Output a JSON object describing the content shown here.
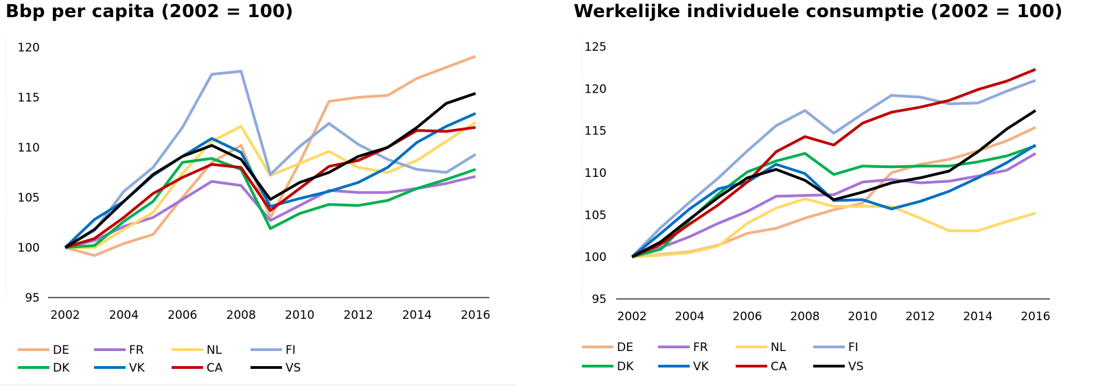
{
  "charts": [
    {
      "title": "Bbp per capita (2002 = 100)",
      "chart_data": {
        "type": "line",
        "title": "Bbp per capita (2002 = 100)",
        "xlabel": "",
        "ylabel": "",
        "x": [
          2002,
          2003,
          2004,
          2005,
          2006,
          2007,
          2008,
          2009,
          2010,
          2011,
          2012,
          2013,
          2014,
          2015,
          2016
        ],
        "xticks": [
          "2002",
          "2004",
          "2006",
          "2008",
          "2010",
          "2012",
          "2014",
          "2016"
        ],
        "yticks": [
          "95",
          "100",
          "105",
          "110",
          "115",
          "120"
        ],
        "ylim": [
          95,
          120
        ],
        "grid": false,
        "legend": "bottom",
        "series": [
          {
            "name": "DE",
            "color": "#F4B183",
            "values": [
              100,
              99.2,
              100.4,
              101.3,
              105.0,
              108.5,
              110.2,
              103.0,
              108.5,
              114.6,
              115.0,
              115.2,
              116.9,
              118.0,
              119.1
            ]
          },
          {
            "name": "FR",
            "color": "#A674D8",
            "values": [
              100,
              100.7,
              102.1,
              103.0,
              104.8,
              106.6,
              106.2,
              102.7,
              104.2,
              105.7,
              105.5,
              105.5,
              105.9,
              106.4,
              107.1
            ]
          },
          {
            "name": "NL",
            "color": "#FFD966",
            "values": [
              100,
              100.0,
              101.8,
              103.5,
              107.4,
              110.6,
              112.1,
              107.2,
              108.4,
              109.6,
              108.0,
              107.5,
              108.7,
              110.6,
              112.5
            ]
          },
          {
            "name": "FI",
            "color": "#8FAADC",
            "values": [
              100,
              101.7,
              105.6,
              108.0,
              112.0,
              117.3,
              117.6,
              107.3,
              110.1,
              112.4,
              110.3,
              108.8,
              107.8,
              107.5,
              109.3
            ]
          },
          {
            "name": "DK",
            "color": "#00B050",
            "values": [
              100,
              100.2,
              102.6,
              104.6,
              108.5,
              108.9,
              107.8,
              101.9,
              103.4,
              104.3,
              104.2,
              104.7,
              105.9,
              106.8,
              107.8
            ]
          },
          {
            "name": "VK",
            "color": "#0070C0",
            "values": [
              100,
              102.8,
              104.6,
              107.2,
              109.1,
              110.9,
              109.5,
              104.1,
              104.9,
              105.6,
              106.5,
              108.0,
              110.5,
              112.1,
              113.4
            ]
          },
          {
            "name": "CA",
            "color": "#C00000",
            "values": [
              100,
              100.9,
              103.0,
              105.4,
              107.0,
              108.3,
              108.0,
              103.7,
              105.9,
              108.1,
              108.7,
              110.0,
              111.7,
              111.6,
              112.0
            ]
          },
          {
            "name": "VS",
            "color": "#000000",
            "values": [
              100,
              101.8,
              104.6,
              107.3,
              109.1,
              110.2,
              108.8,
              104.8,
              106.5,
              107.5,
              109.1,
              110.0,
              112.0,
              114.4,
              115.4
            ]
          }
        ]
      }
    },
    {
      "title": "Werkelijke individuele consumptie (2002 = 100)",
      "chart_data": {
        "type": "line",
        "title": "Werkelijke individuele consumptie (2002 = 100)",
        "xlabel": "",
        "ylabel": "",
        "x": [
          2002,
          2003,
          2004,
          2005,
          2006,
          2007,
          2008,
          2009,
          2010,
          2011,
          2012,
          2013,
          2014,
          2015,
          2016
        ],
        "xticks": [
          "2002",
          "2004",
          "2006",
          "2008",
          "2010",
          "2012",
          "2014",
          "2016"
        ],
        "yticks": [
          "95",
          "100",
          "105",
          "110",
          "115",
          "120",
          "125"
        ],
        "ylim": [
          95,
          125
        ],
        "grid": false,
        "legend": "bottom",
        "series": [
          {
            "name": "DE",
            "color": "#F4B183",
            "values": [
              100,
              100.3,
              100.6,
              101.4,
              102.8,
              103.4,
              104.6,
              105.6,
              106.4,
              110.0,
              111.0,
              111.6,
              112.6,
              113.8,
              115.4
            ]
          },
          {
            "name": "FR",
            "color": "#A674D8",
            "values": [
              100,
              101.1,
              102.4,
              104.0,
              105.4,
              107.2,
              107.3,
              107.4,
              108.9,
              109.2,
              108.8,
              109.0,
              109.6,
              110.3,
              112.3
            ]
          },
          {
            "name": "NL",
            "color": "#FFD966",
            "values": [
              100,
              100.2,
              100.5,
              101.3,
              104.0,
              105.8,
              106.9,
              106.0,
              106.0,
              106.0,
              104.6,
              103.1,
              103.1,
              104.2,
              105.2
            ]
          },
          {
            "name": "FI",
            "color": "#8FAADC",
            "values": [
              100,
              103.5,
              106.5,
              109.4,
              112.6,
              115.6,
              117.4,
              114.7,
              117.0,
              119.2,
              119.0,
              118.2,
              118.3,
              119.7,
              121.0
            ]
          },
          {
            "name": "DK",
            "color": "#00B050",
            "values": [
              100,
              100.9,
              104.4,
              107.5,
              110.1,
              111.4,
              112.3,
              109.8,
              110.8,
              110.7,
              110.8,
              110.8,
              111.3,
              112.0,
              113.2
            ]
          },
          {
            "name": "VK",
            "color": "#0070C0",
            "values": [
              100,
              102.8,
              105.7,
              108.1,
              108.9,
              111.0,
              109.9,
              106.7,
              106.8,
              105.7,
              106.6,
              107.8,
              109.4,
              111.2,
              113.3
            ]
          },
          {
            "name": "CA",
            "color": "#C00000",
            "values": [
              100,
              101.5,
              103.9,
              106.2,
              108.9,
              112.5,
              114.3,
              113.3,
              115.9,
              117.2,
              117.8,
              118.6,
              119.9,
              120.9,
              122.3
            ]
          },
          {
            "name": "VS",
            "color": "#000000",
            "values": [
              100,
              101.8,
              104.5,
              107.1,
              109.4,
              110.4,
              109.1,
              106.8,
              107.7,
              108.8,
              109.4,
              110.2,
              112.5,
              115.2,
              117.4
            ]
          }
        ]
      }
    }
  ]
}
